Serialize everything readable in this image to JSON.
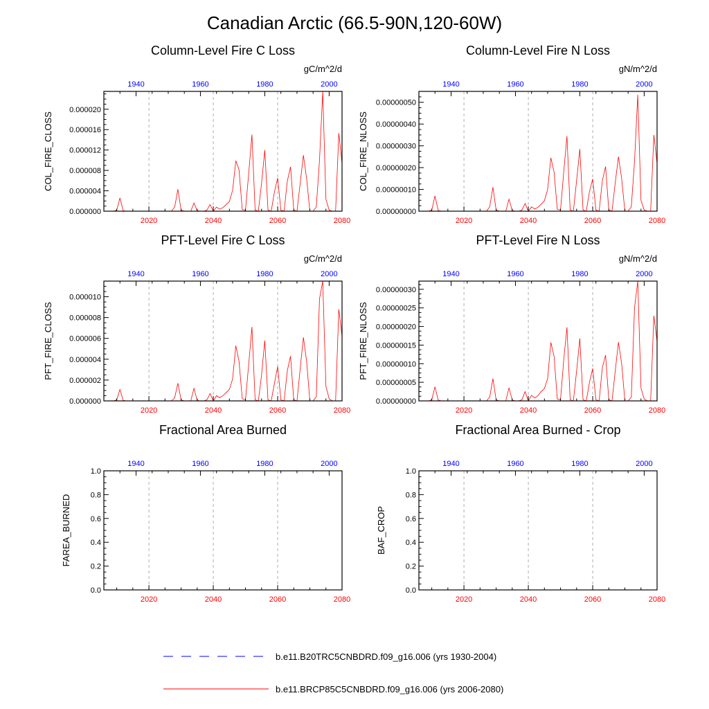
{
  "figure": {
    "title": "Canadian Arctic (66.5-90N,120-60W)",
    "colors": {
      "future": "#ff0000",
      "historical": "#0000ff",
      "axis": "#000000",
      "grid": "#999999"
    }
  },
  "legend": {
    "entries": [
      {
        "label": "b.e11.B20TRC5CNBDRD.f09_g16.006 (yrs 1930-2004)",
        "style": "dashed",
        "color": "#0000ff"
      },
      {
        "label": "b.e11.BRCP85C5CNBDRD.f09_g16.006 (yrs 2006-2080)",
        "style": "solid",
        "color": "#ff0000"
      }
    ]
  },
  "chart_data": [
    {
      "type": "line",
      "title": "Column-Level Fire C Loss",
      "units": "gC/m^2/d",
      "ylabel": "COL_FIRE_CLOSS",
      "xlim": [
        2006,
        2080
      ],
      "top_xlim": [
        1930,
        2004
      ],
      "ylim": [
        0,
        2.35e-05
      ],
      "bottom_ticks": [
        "2020",
        "2040",
        "2060",
        "2080"
      ],
      "bottom_tick_values": [
        2020,
        2040,
        2060,
        2080
      ],
      "top_ticks": [
        "1940",
        "1960",
        "1980",
        "2000"
      ],
      "top_tick_values": [
        1940,
        1960,
        1980,
        2000
      ],
      "y_ticks": [
        "0.000000",
        "0.000004",
        "0.000008",
        "0.000012",
        "0.000016",
        "0.000020"
      ],
      "y_tick_values": [
        0,
        4e-06,
        8e-06,
        1.2e-05,
        1.6e-05,
        2e-05
      ],
      "grid_x": [
        2020,
        2040,
        2060
      ],
      "series": [
        {
          "x": [
            2006,
            2007,
            2008,
            2009,
            2010,
            2011,
            2012,
            2013,
            2014,
            2015,
            2016,
            2017,
            2018,
            2019,
            2020,
            2021,
            2022,
            2023,
            2024,
            2025,
            2026,
            2027,
            2028,
            2029,
            2030,
            2031,
            2032,
            2033,
            2034,
            2035,
            2036,
            2037,
            2038,
            2039,
            2040,
            2041,
            2042,
            2043,
            2044,
            2045,
            2046,
            2047,
            2048,
            2049,
            2050,
            2051,
            2052,
            2053,
            2054,
            2055,
            2056,
            2057,
            2058,
            2059,
            2060,
            2061,
            2062,
            2063,
            2064,
            2065,
            2066,
            2067,
            2068,
            2069,
            2070,
            2071,
            2072,
            2073,
            2074,
            2075,
            2076,
            2077,
            2078,
            2079,
            2080
          ],
          "values": [
            0,
            0,
            0,
            0,
            2e-07,
            2.6e-06,
            1e-07,
            0,
            0,
            0,
            0,
            0,
            0,
            0,
            0,
            0,
            0,
            0,
            0,
            0,
            0,
            0,
            8e-07,
            4.3e-06,
            2e-07,
            0,
            0,
            0,
            1.6e-06,
            1e-07,
            0,
            0,
            2e-07,
            1.3e-06,
            0,
            8e-07,
            4e-07,
            7e-07,
            1.3e-06,
            1.9e-06,
            4.1e-06,
            9.9e-06,
            8.1e-06,
            3e-07,
            2e-07,
            7.4e-06,
            1.5e-05,
            2e-07,
            0,
            5.5e-06,
            1.2e-05,
            2e-07,
            0,
            3.8e-06,
            6.5e-06,
            2e-07,
            0,
            5.9e-06,
            8.7e-06,
            2e-07,
            0,
            5.5e-06,
            1.1e-05,
            6.4e-06,
            0,
            0,
            8e-07,
            1e-05,
            2.35e-05,
            2.3e-06,
            2e-07,
            0,
            0,
            1.53e-05,
            9.4e-06
          ]
        }
      ]
    },
    {
      "type": "line",
      "title": "Column-Level Fire N Loss",
      "units": "gN/m^2/d",
      "ylabel": "COL_FIRE_NLOSS",
      "xlim": [
        2006,
        2080
      ],
      "top_xlim": [
        1930,
        2004
      ],
      "ylim": [
        0,
        5.5e-07
      ],
      "bottom_ticks": [
        "2020",
        "2040",
        "2060",
        "2080"
      ],
      "bottom_tick_values": [
        2020,
        2040,
        2060,
        2080
      ],
      "top_ticks": [
        "1940",
        "1960",
        "1980",
        "2000"
      ],
      "top_tick_values": [
        1940,
        1960,
        1980,
        2000
      ],
      "y_ticks": [
        "0.00000000",
        "0.00000010",
        "0.00000020",
        "0.00000030",
        "0.00000040",
        "0.00000050"
      ],
      "y_tick_values": [
        0,
        1e-07,
        2e-07,
        3e-07,
        4e-07,
        5e-07
      ],
      "grid_x": [
        2020,
        2040,
        2060
      ],
      "series": [
        {
          "x": [
            2006,
            2007,
            2008,
            2009,
            2010,
            2011,
            2012,
            2013,
            2014,
            2015,
            2016,
            2017,
            2018,
            2019,
            2020,
            2021,
            2022,
            2023,
            2024,
            2025,
            2026,
            2027,
            2028,
            2029,
            2030,
            2031,
            2032,
            2033,
            2034,
            2035,
            2036,
            2037,
            2038,
            2039,
            2040,
            2041,
            2042,
            2043,
            2044,
            2045,
            2046,
            2047,
            2048,
            2049,
            2050,
            2051,
            2052,
            2053,
            2054,
            2055,
            2056,
            2057,
            2058,
            2059,
            2060,
            2061,
            2062,
            2063,
            2064,
            2065,
            2066,
            2067,
            2068,
            2069,
            2070,
            2071,
            2072,
            2073,
            2074,
            2075,
            2076,
            2077,
            2078,
            2079,
            2080
          ],
          "values": [
            0,
            0,
            0,
            0,
            5e-09,
            7e-08,
            3e-09,
            0,
            0,
            0,
            0,
            0,
            0,
            0,
            0,
            0,
            0,
            0,
            0,
            0,
            0,
            0,
            2e-08,
            1.1e-07,
            5e-09,
            0,
            0,
            0,
            5.5e-08,
            3e-09,
            0,
            0,
            5e-09,
            3.5e-08,
            0,
            2e-08,
            1e-08,
            1.8e-08,
            3.2e-08,
            4.8e-08,
            1e-07,
            2.45e-07,
            1.8e-07,
            8e-09,
            5e-09,
            1.8e-07,
            3.45e-07,
            5e-09,
            0,
            1.4e-07,
            2.85e-07,
            5e-09,
            0,
            9e-08,
            1.48e-07,
            5e-09,
            0,
            1.4e-07,
            2.05e-07,
            5e-09,
            0,
            1.3e-07,
            2.5e-07,
            1.5e-07,
            0,
            0,
            2e-08,
            2.3e-07,
            5.35e-07,
            5e-08,
            5e-09,
            0,
            0,
            3.5e-07,
            2.2e-07
          ]
        }
      ]
    },
    {
      "type": "line",
      "title": "PFT-Level Fire C Loss",
      "units": "gC/m^2/d",
      "ylabel": "PFT_FIRE_CLOSS",
      "xlim": [
        2006,
        2080
      ],
      "top_xlim": [
        1930,
        2004
      ],
      "ylim": [
        0,
        1.15e-05
      ],
      "bottom_ticks": [
        "2020",
        "2040",
        "2060",
        "2080"
      ],
      "bottom_tick_values": [
        2020,
        2040,
        2060,
        2080
      ],
      "top_ticks": [
        "1940",
        "1960",
        "1980",
        "2000"
      ],
      "top_tick_values": [
        1940,
        1960,
        1980,
        2000
      ],
      "y_ticks": [
        "0.000000",
        "0.000002",
        "0.000004",
        "0.000006",
        "0.000008",
        "0.000010"
      ],
      "y_tick_values": [
        0,
        2e-06,
        4e-06,
        6e-06,
        8e-06,
        1e-05
      ],
      "grid_x": [
        2020,
        2040,
        2060
      ],
      "series": [
        {
          "x": [
            2006,
            2007,
            2008,
            2009,
            2010,
            2011,
            2012,
            2013,
            2014,
            2015,
            2016,
            2017,
            2018,
            2019,
            2020,
            2021,
            2022,
            2023,
            2024,
            2025,
            2026,
            2027,
            2028,
            2029,
            2030,
            2031,
            2032,
            2033,
            2034,
            2035,
            2036,
            2037,
            2038,
            2039,
            2040,
            2041,
            2042,
            2043,
            2044,
            2045,
            2046,
            2047,
            2048,
            2049,
            2050,
            2051,
            2052,
            2053,
            2054,
            2055,
            2056,
            2057,
            2058,
            2059,
            2060,
            2061,
            2062,
            2063,
            2064,
            2065,
            2066,
            2067,
            2068,
            2069,
            2070,
            2071,
            2072,
            2073,
            2074,
            2075,
            2076,
            2077,
            2078,
            2079,
            2080
          ],
          "values": [
            0,
            0,
            0,
            0,
            1e-07,
            1.1e-06,
            5e-08,
            0,
            0,
            0,
            0,
            0,
            0,
            0,
            0,
            0,
            0,
            0,
            0,
            0,
            0,
            0,
            3e-07,
            1.7e-06,
            1e-07,
            0,
            0,
            0,
            1.2e-06,
            5e-08,
            0,
            0,
            1e-07,
            7e-07,
            0,
            5e-07,
            3e-07,
            5e-07,
            8e-07,
            1.1e-06,
            2.1e-06,
            5.3e-06,
            3.8e-06,
            2e-07,
            1e-07,
            3.5e-06,
            7.1e-06,
            1e-07,
            0,
            2.5e-06,
            5.8e-06,
            1e-07,
            0,
            1.7e-06,
            3.3e-06,
            1e-07,
            0,
            2.9e-06,
            4.3e-06,
            1e-07,
            0,
            3.1e-06,
            6.1e-06,
            3.8e-06,
            0,
            0,
            4e-07,
            9.8e-06,
            1.15e-05,
            1.4e-06,
            2e-07,
            0,
            0,
            8.8e-06,
            6.2e-06
          ]
        }
      ]
    },
    {
      "type": "line",
      "title": "PFT-Level Fire N Loss",
      "units": "gN/m^2/d",
      "ylabel": "PFT_FIRE_NLOSS",
      "xlim": [
        2006,
        2080
      ],
      "top_xlim": [
        1930,
        2004
      ],
      "ylim": [
        0,
        3.22e-07
      ],
      "bottom_ticks": [
        "2020",
        "2040",
        "2060",
        "2080"
      ],
      "bottom_tick_values": [
        2020,
        2040,
        2060,
        2080
      ],
      "top_ticks": [
        "1940",
        "1960",
        "1980",
        "2000"
      ],
      "top_tick_values": [
        1940,
        1960,
        1980,
        2000
      ],
      "y_ticks": [
        "0.00000000",
        "0.00000005",
        "0.00000010",
        "0.00000015",
        "0.00000020",
        "0.00000025",
        "0.00000030"
      ],
      "y_tick_values": [
        0,
        5e-08,
        1e-07,
        1.5e-07,
        2e-07,
        2.5e-07,
        3e-07
      ],
      "grid_x": [
        2020,
        2040,
        2060
      ],
      "series": [
        {
          "x": [
            2006,
            2007,
            2008,
            2009,
            2010,
            2011,
            2012,
            2013,
            2014,
            2015,
            2016,
            2017,
            2018,
            2019,
            2020,
            2021,
            2022,
            2023,
            2024,
            2025,
            2026,
            2027,
            2028,
            2029,
            2030,
            2031,
            2032,
            2033,
            2034,
            2035,
            2036,
            2037,
            2038,
            2039,
            2040,
            2041,
            2042,
            2043,
            2044,
            2045,
            2046,
            2047,
            2048,
            2049,
            2050,
            2051,
            2052,
            2053,
            2054,
            2055,
            2056,
            2057,
            2058,
            2059,
            2060,
            2061,
            2062,
            2063,
            2064,
            2065,
            2066,
            2067,
            2068,
            2069,
            2070,
            2071,
            2072,
            2073,
            2074,
            2075,
            2076,
            2077,
            2078,
            2079,
            2080
          ],
          "values": [
            0,
            0,
            0,
            0,
            3e-09,
            3.8e-08,
            2e-09,
            0,
            0,
            0,
            0,
            0,
            0,
            0,
            0,
            0,
            0,
            0,
            0,
            0,
            0,
            0,
            1e-08,
            6e-08,
            3e-09,
            0,
            0,
            0,
            3.5e-08,
            2e-09,
            0,
            0,
            3e-09,
            2.5e-08,
            0,
            1.5e-08,
            8e-09,
            1.4e-08,
            2.5e-08,
            3.3e-08,
            6e-08,
            1.57e-07,
            1.2e-07,
            5e-09,
            3e-09,
            1.1e-07,
            1.98e-07,
            3e-09,
            0,
            8e-08,
            1.68e-07,
            3e-09,
            0,
            5e-08,
            8.7e-08,
            3e-09,
            0,
            9e-08,
            1.23e-07,
            3e-09,
            0,
            8e-08,
            1.58e-07,
            1e-07,
            0,
            0,
            1e-08,
            2.5e-07,
            3.22e-07,
            3.5e-08,
            5e-09,
            0,
            0,
            2.29e-07,
            1.6e-07
          ]
        }
      ]
    },
    {
      "type": "line",
      "title": "Fractional Area Burned",
      "units": "",
      "ylabel": "FAREA_BURNED",
      "xlim": [
        2006,
        2080
      ],
      "top_xlim": [
        1930,
        2004
      ],
      "ylim": [
        0,
        1
      ],
      "bottom_ticks": [
        "2020",
        "2040",
        "2060",
        "2080"
      ],
      "bottom_tick_values": [
        2020,
        2040,
        2060,
        2080
      ],
      "top_ticks": [
        "1940",
        "1960",
        "1980",
        "2000"
      ],
      "top_tick_values": [
        1940,
        1960,
        1980,
        2000
      ],
      "y_ticks": [
        "0.0",
        "0.2",
        "0.4",
        "0.6",
        "0.8",
        "1.0"
      ],
      "y_tick_values": [
        0,
        0.2,
        0.4,
        0.6,
        0.8,
        1.0
      ],
      "grid_x": [
        2020,
        2040,
        2060
      ],
      "series": []
    },
    {
      "type": "line",
      "title": "Fractional Area Burned - Crop",
      "units": "",
      "ylabel": "BAF_CROP",
      "xlim": [
        2006,
        2080
      ],
      "top_xlim": [
        1930,
        2004
      ],
      "ylim": [
        0,
        1
      ],
      "bottom_ticks": [
        "2020",
        "2040",
        "2060",
        "2080"
      ],
      "bottom_tick_values": [
        2020,
        2040,
        2060,
        2080
      ],
      "top_ticks": [
        "1940",
        "1960",
        "1980",
        "2000"
      ],
      "top_tick_values": [
        1940,
        1960,
        1980,
        2000
      ],
      "y_ticks": [
        "0.0",
        "0.2",
        "0.4",
        "0.6",
        "0.8",
        "1.0"
      ],
      "y_tick_values": [
        0,
        0.2,
        0.4,
        0.6,
        0.8,
        1.0
      ],
      "grid_x": [
        2020,
        2040,
        2060
      ],
      "series": []
    }
  ]
}
